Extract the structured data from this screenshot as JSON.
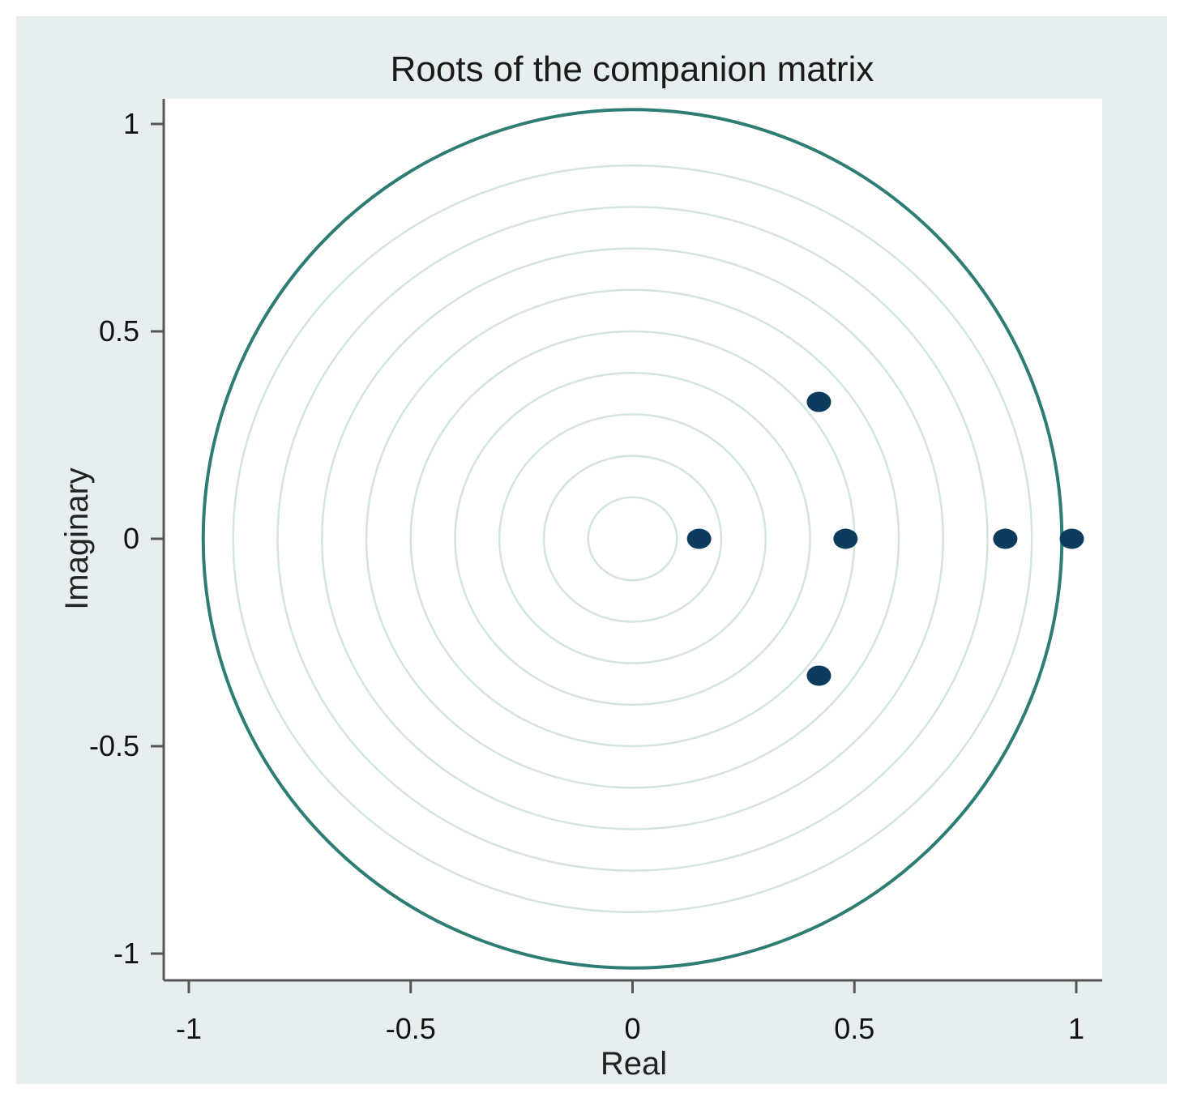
{
  "chart_data": {
    "type": "scatter",
    "title": "Roots of the companion matrix",
    "xlabel": "Real",
    "ylabel": "Imaginary",
    "xlim": [
      -1,
      1
    ],
    "ylim": [
      -1,
      1
    ],
    "x_ticks": [
      {
        "value": -1,
        "label": "-1"
      },
      {
        "value": -0.5,
        "label": "-0.5"
      },
      {
        "value": 0,
        "label": "0"
      },
      {
        "value": 0.5,
        "label": "0.5"
      },
      {
        "value": 1,
        "label": "1"
      }
    ],
    "y_ticks": [
      {
        "value": 1,
        "label": "1"
      },
      {
        "value": 0.5,
        "label": "0.5"
      },
      {
        "value": 0,
        "label": "0"
      },
      {
        "value": -0.5,
        "label": "-0.5"
      },
      {
        "value": -1,
        "label": "-1"
      }
    ],
    "unit_circle": true,
    "reference_circle_radii": [
      0.1,
      0.2,
      0.3,
      0.4,
      0.5,
      0.6,
      0.7,
      0.8,
      0.9
    ],
    "points": [
      {
        "x": 0.15,
        "y": 0
      },
      {
        "x": 0.42,
        "y": 0.33
      },
      {
        "x": 0.42,
        "y": -0.33
      },
      {
        "x": 0.48,
        "y": 0
      },
      {
        "x": 0.84,
        "y": 0
      },
      {
        "x": 0.99,
        "y": 0
      }
    ],
    "colors": {
      "background": "#e6eef0",
      "plot_area": "#ffffff",
      "unit_circle": "#2e7d74",
      "reference_circles": "#d3e4e2",
      "points": "#0c3b5e",
      "axis": "#555555"
    }
  }
}
